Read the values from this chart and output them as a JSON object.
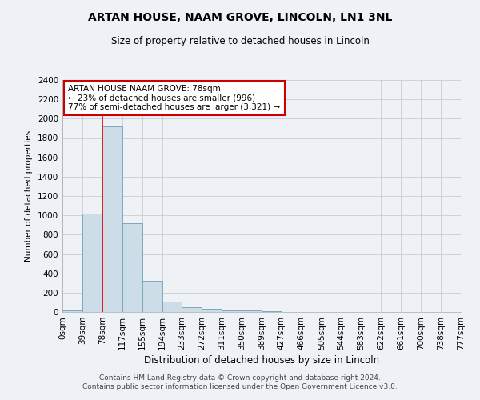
{
  "title": "ARTAN HOUSE, NAAM GROVE, LINCOLN, LN1 3NL",
  "subtitle": "Size of property relative to detached houses in Lincoln",
  "xlabel": "Distribution of detached houses by size in Lincoln",
  "ylabel": "Number of detached properties",
  "bin_labels": [
    "0sqm",
    "39sqm",
    "78sqm",
    "117sqm",
    "155sqm",
    "194sqm",
    "233sqm",
    "272sqm",
    "311sqm",
    "350sqm",
    "389sqm",
    "427sqm",
    "466sqm",
    "505sqm",
    "544sqm",
    "583sqm",
    "622sqm",
    "661sqm",
    "700sqm",
    "738sqm",
    "777sqm"
  ],
  "bar_values": [
    20,
    1020,
    1920,
    920,
    320,
    110,
    50,
    35,
    20,
    15,
    10,
    0,
    0,
    0,
    0,
    0,
    0,
    0,
    0,
    0
  ],
  "bar_color": "#ccdde8",
  "bar_edge_color": "#7aaabb",
  "red_line_x": 2,
  "ylim": [
    0,
    2400
  ],
  "yticks": [
    0,
    200,
    400,
    600,
    800,
    1000,
    1200,
    1400,
    1600,
    1800,
    2000,
    2200,
    2400
  ],
  "annotation_title": "ARTAN HOUSE NAAM GROVE: 78sqm",
  "annotation_line1": "← 23% of detached houses are smaller (996)",
  "annotation_line2": "77% of semi-detached houses are larger (3,321) →",
  "annotation_box_color": "#ffffff",
  "annotation_box_edge": "#cc0000",
  "footer_line1": "Contains HM Land Registry data © Crown copyright and database right 2024.",
  "footer_line2": "Contains public sector information licensed under the Open Government Licence v3.0.",
  "background_color": "#eef2f7",
  "grid_color": "#cccccc"
}
